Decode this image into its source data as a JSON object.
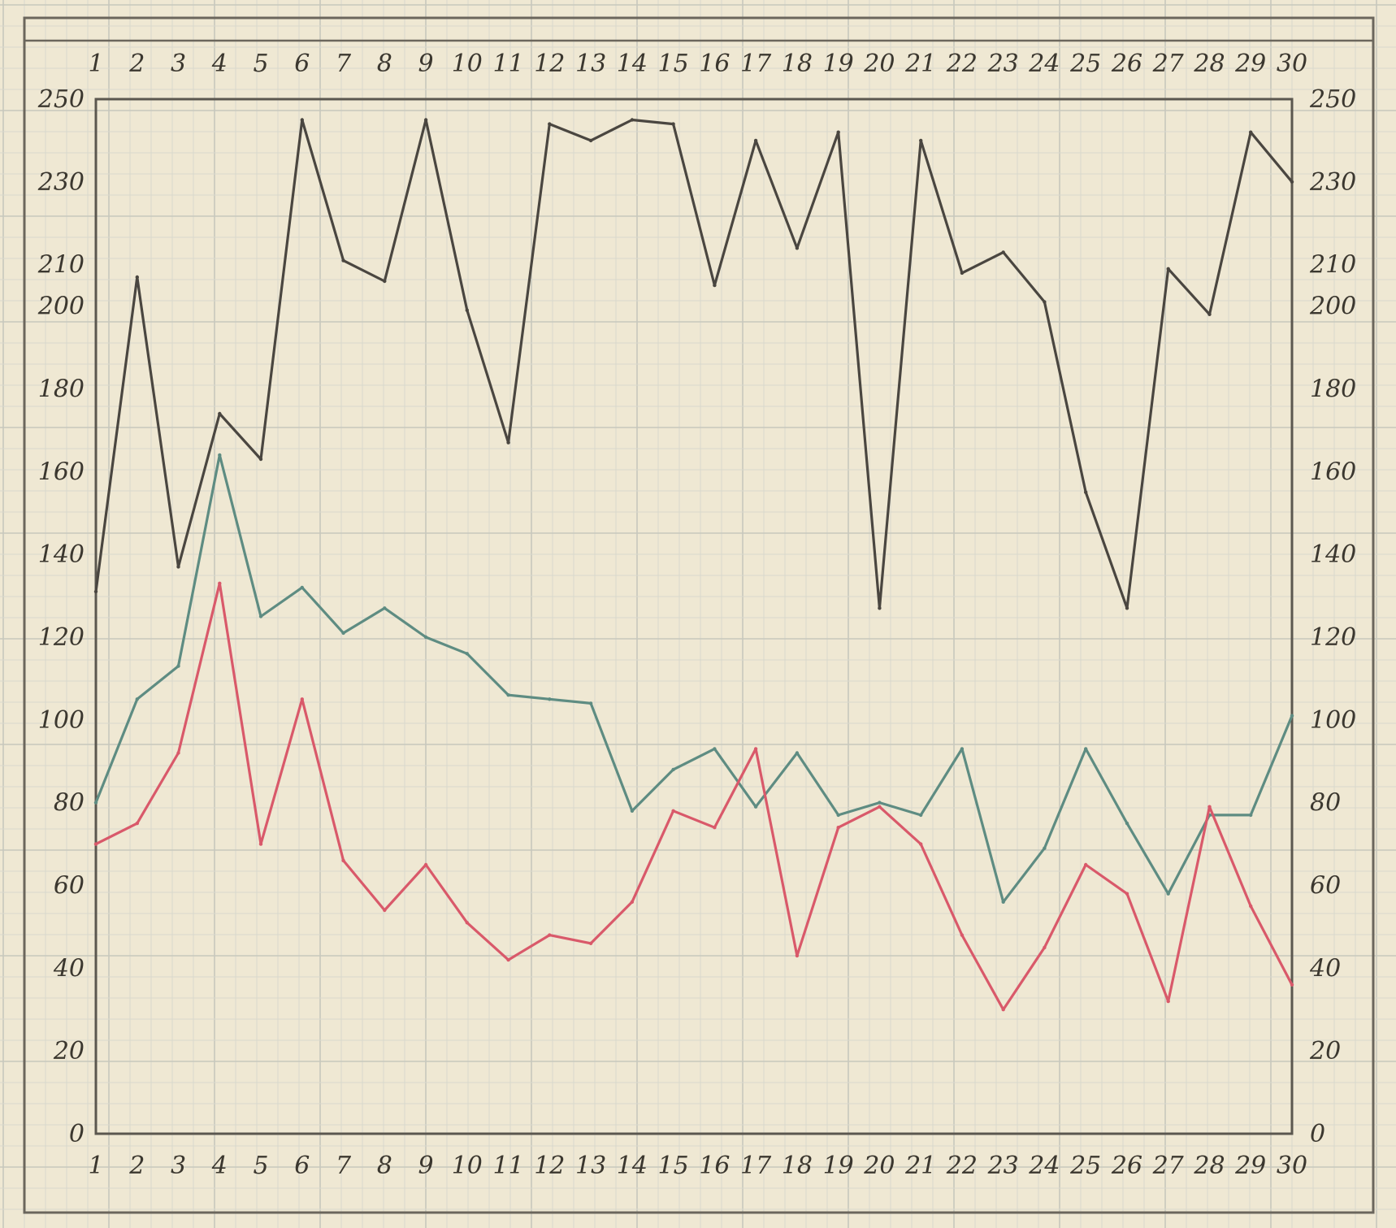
{
  "chart_data": {
    "type": "line",
    "title": "",
    "xlabel": "",
    "ylabel": "",
    "x": [
      1,
      2,
      3,
      4,
      5,
      6,
      7,
      8,
      9,
      10,
      11,
      12,
      13,
      14,
      15,
      16,
      17,
      18,
      19,
      20,
      21,
      22,
      23,
      24,
      25,
      26,
      27,
      28,
      29,
      30
    ],
    "x_tick_labels": [
      "1",
      "2",
      "3",
      "4",
      "5",
      "6",
      "7",
      "8",
      "9",
      "10",
      "11",
      "12",
      "13",
      "14",
      "15",
      "16",
      "17",
      "18",
      "19",
      "20",
      "21",
      "22",
      "23",
      "24",
      "25",
      "26",
      "27",
      "28",
      "29",
      "30"
    ],
    "y_tick_labels_left": [
      "0",
      "20",
      "40",
      "60",
      "80",
      "100",
      "120",
      "140",
      "160",
      "180",
      "200",
      "210",
      "230",
      "250"
    ],
    "y_tick_labels_right": [
      "0",
      "20",
      "40",
      "60",
      "80",
      "100",
      "120",
      "140",
      "160",
      "180",
      "200",
      "210",
      "230",
      "250"
    ],
    "y_tick_values": [
      0,
      20,
      40,
      60,
      80,
      100,
      120,
      140,
      160,
      180,
      200,
      210,
      230,
      250
    ],
    "ylim": [
      0,
      250
    ],
    "grid": true,
    "legend": "none",
    "series": [
      {
        "color": "#4a4640",
        "values": [
          131,
          207,
          137,
          174,
          163,
          245,
          211,
          206,
          245,
          199,
          167,
          244,
          240,
          245,
          244,
          205,
          240,
          214,
          242,
          127,
          240,
          208,
          213,
          201,
          155,
          127,
          209,
          198,
          242,
          230
        ]
      },
      {
        "color": "#5e8c82",
        "values": [
          80,
          105,
          113,
          164,
          125,
          132,
          121,
          127,
          120,
          116,
          106,
          105,
          104,
          78,
          88,
          93,
          79,
          92,
          77,
          80,
          77,
          93,
          56,
          69,
          93,
          75,
          58,
          77,
          77,
          101
        ]
      },
      {
        "color": "#d9596a",
        "values": [
          70,
          75,
          92,
          133,
          70,
          105,
          66,
          54,
          65,
          51,
          42,
          48,
          46,
          56,
          78,
          74,
          93,
          43,
          74,
          79,
          70,
          48,
          30,
          45,
          65,
          58,
          32,
          79,
          55,
          36
        ]
      }
    ]
  }
}
